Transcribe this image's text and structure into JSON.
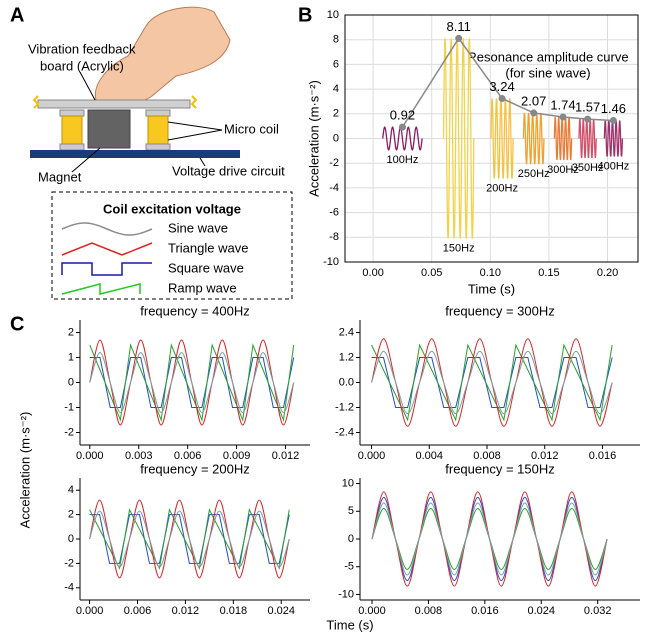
{
  "panel_labels": [
    "A",
    "B",
    "C"
  ],
  "diagram": {
    "labels": {
      "board_line1": "Vibration feedback",
      "board_line2": "board (Acrylic)",
      "coil": "Micro coil",
      "magnet": "Magnet",
      "circuit": "Voltage drive circuit"
    },
    "legend": {
      "title": "Coil excitation voltage",
      "items": [
        {
          "label": "Sine wave",
          "color": "#8c8c8c"
        },
        {
          "label": "Triangle wave",
          "color": "#e02020"
        },
        {
          "label": "Square wave",
          "color": "#1a1aa8"
        },
        {
          "label": "Ramp wave",
          "color": "#22cc22"
        }
      ]
    }
  },
  "panel_c": {
    "ylabel": "Acceleration (m·s⁻²)",
    "xlabel": "Time (s)"
  },
  "chart_data": [
    {
      "type": "line",
      "xlabel": "Time (s)",
      "ylabel": "Acceleration (m·s⁻²)",
      "annotations": [
        "Resonance  amplitude curve",
        "(for sine wave)"
      ],
      "x": [
        0.025,
        0.073,
        0.11,
        0.137,
        0.162,
        0.183,
        0.205
      ],
      "values": [
        0.92,
        8.11,
        3.24,
        2.07,
        1.74,
        1.57,
        1.46
      ],
      "color": "#888888",
      "burst_labels": [
        "100Hz",
        "150Hz",
        "200Hz",
        "250Hz",
        "300Hz",
        "350Hz",
        "400Hz"
      ],
      "burst_colors": [
        "#8b1a6b",
        "#f2d24b",
        "#f5c343",
        "#f0a030",
        "#e87d3a",
        "#d0506a",
        "#a0306a"
      ],
      "xlim": [
        -0.024,
        0.226
      ],
      "xticks": [
        {
          "value": 0,
          "label": "0.00"
        },
        0.05,
        {
          "value": 0.1,
          "label": "0.10"
        },
        0.15,
        {
          "value": 0.2,
          "label": "0.20"
        }
      ],
      "ylim": [
        -10,
        10
      ],
      "yticks": [
        -10,
        -8,
        -6,
        -4,
        -2,
        0,
        2,
        4,
        6,
        8,
        10
      ],
      "grid": true
    },
    {
      "type": "line",
      "title": "frequency = 400Hz",
      "x": [
        0,
        0.000625,
        0.00125,
        0.001875,
        0.0025,
        0.003125,
        0.00375,
        0.004375,
        0.005,
        0.005625,
        0.00625,
        0.006875,
        0.0075,
        0.008125,
        0.00875,
        0.009375,
        0.01,
        0.010625,
        0.01125,
        0.011875,
        0.0125
      ],
      "series": [
        {
          "color": "#1f4fd0",
          "smooth": false,
          "values": [
            1,
            1,
            -1,
            -1,
            1,
            1,
            -1,
            -1,
            1,
            1,
            -1,
            -1,
            1,
            1,
            -1,
            -1,
            1,
            1,
            -1,
            -1,
            1
          ]
        },
        {
          "color": "#2ca02c",
          "smooth": false,
          "values": [
            1.5,
            0.5,
            -0.5,
            -1.5,
            1.5,
            0.5,
            -0.5,
            -1.5,
            1.5,
            0.5,
            -0.5,
            -1.5,
            1.5,
            0.5,
            -0.5,
            -1.5,
            1.5,
            0.5,
            -0.5,
            -1.5,
            1.5
          ]
        },
        {
          "color": "#d62728",
          "smooth": true,
          "values": [
            0,
            1.7,
            0,
            -1.7,
            0,
            1.7,
            0,
            -1.7,
            0,
            1.7,
            0,
            -1.7,
            0,
            1.7,
            0,
            -1.7,
            0,
            1.7,
            0,
            -1.7,
            0
          ]
        },
        {
          "color": "#7a9fa5",
          "smooth": true,
          "values": [
            0,
            1.2,
            0,
            -1.2,
            0,
            1.2,
            0,
            -1.2,
            0,
            1.2,
            0,
            -1.2,
            0,
            1.2,
            0,
            -1.2,
            0,
            1.2,
            0,
            -1.2,
            0
          ]
        }
      ],
      "xlim": [
        -0.0006,
        0.0135
      ],
      "xticks": [
        {
          "value": 0,
          "label": "0.000"
        },
        {
          "value": 0.003,
          "label": "0.003"
        },
        {
          "value": 0.006,
          "label": "0.006"
        },
        {
          "value": 0.009,
          "label": "0.009"
        },
        {
          "value": 0.012,
          "label": "0.012"
        }
      ],
      "ylim": [
        -2.5,
        2.5
      ],
      "yticks": [
        -2,
        -1,
        0,
        1,
        2
      ],
      "grid": false
    },
    {
      "type": "line",
      "title": "frequency = 300Hz",
      "x": [
        0,
        0.00083,
        0.00167,
        0.0025,
        0.00333,
        0.00417,
        0.005,
        0.00583,
        0.00667,
        0.0075,
        0.00833,
        0.00917,
        0.01,
        0.01083,
        0.01167,
        0.0125,
        0.01333,
        0.01417,
        0.015,
        0.01583,
        0.01667
      ],
      "series": [
        {
          "color": "#1f4fd0",
          "smooth": false,
          "values": [
            1.2,
            1.2,
            -1.2,
            -1.2,
            1.2,
            1.2,
            -1.2,
            -1.2,
            1.2,
            1.2,
            -1.2,
            -1.2,
            1.2,
            1.2,
            -1.2,
            -1.2,
            1.2,
            1.2,
            -1.2,
            -1.2,
            1.2
          ]
        },
        {
          "color": "#2ca02c",
          "smooth": false,
          "values": [
            1.8,
            0.6,
            -0.6,
            -1.8,
            1.8,
            0.6,
            -0.6,
            -1.8,
            1.8,
            0.6,
            -0.6,
            -1.8,
            1.8,
            0.6,
            -0.6,
            -1.8,
            1.8,
            0.6,
            -0.6,
            -1.8,
            1.8
          ]
        },
        {
          "color": "#d62728",
          "smooth": true,
          "values": [
            0,
            2.1,
            0,
            -2.1,
            0,
            2.1,
            0,
            -2.1,
            0,
            2.1,
            0,
            -2.1,
            0,
            2.1,
            0,
            -2.1,
            0,
            2.1,
            0,
            -2.1,
            0
          ]
        },
        {
          "color": "#7a9fa5",
          "smooth": true,
          "values": [
            0,
            1.5,
            0,
            -1.5,
            0,
            1.5,
            0,
            -1.5,
            0,
            1.5,
            0,
            -1.5,
            0,
            1.5,
            0,
            -1.5,
            0,
            1.5,
            0,
            -1.5,
            0
          ]
        }
      ],
      "xlim": [
        -0.0008,
        0.0186
      ],
      "xticks": [
        {
          "value": 0,
          "label": "0.000"
        },
        {
          "value": 0.004,
          "label": "0.004"
        },
        {
          "value": 0.008,
          "label": "0.008"
        },
        {
          "value": 0.012,
          "label": "0.012"
        },
        {
          "value": 0.016,
          "label": "0.016"
        }
      ],
      "ylim": [
        -3,
        3
      ],
      "yticks": [
        -2.4,
        -1.2,
        {
          "value": 0,
          "label": "0.0"
        },
        1.2,
        2.4
      ],
      "grid": false
    },
    {
      "type": "line",
      "title": "frequency = 200Hz",
      "x": [
        0,
        0.00125,
        0.0025,
        0.00375,
        0.005,
        0.00625,
        0.0075,
        0.00875,
        0.01,
        0.01125,
        0.0125,
        0.01375,
        0.015,
        0.01625,
        0.0175,
        0.01875,
        0.02,
        0.02125,
        0.0225,
        0.02375,
        0.025
      ],
      "series": [
        {
          "color": "#1f4fd0",
          "smooth": false,
          "values": [
            2,
            2,
            -2,
            -2,
            2,
            2,
            -2,
            -2,
            2,
            2,
            -2,
            -2,
            2,
            2,
            -2,
            -2,
            2,
            2,
            -2,
            -2,
            2
          ]
        },
        {
          "color": "#2ca02c",
          "smooth": false,
          "values": [
            2.4,
            0.8,
            -0.8,
            -2.4,
            2.4,
            0.8,
            -0.8,
            -2.4,
            2.4,
            0.8,
            -0.8,
            -2.4,
            2.4,
            0.8,
            -0.8,
            -2.4,
            2.4,
            0.8,
            -0.8,
            -2.4,
            2.4
          ]
        },
        {
          "color": "#d62728",
          "smooth": true,
          "values": [
            0,
            3.2,
            0,
            -3.2,
            0,
            3.2,
            0,
            -3.2,
            0,
            3.2,
            0,
            -3.2,
            0,
            3.2,
            0,
            -3.2,
            0,
            3.2,
            0,
            -3.2,
            0
          ]
        },
        {
          "color": "#7a9fa5",
          "smooth": true,
          "values": [
            0,
            2.3,
            0,
            -2.3,
            0,
            2.3,
            0,
            -2.3,
            0,
            2.3,
            0,
            -2.3,
            0,
            2.3,
            0,
            -2.3,
            0,
            2.3,
            0,
            -2.3,
            0
          ]
        }
      ],
      "xlim": [
        -0.0012,
        0.0276
      ],
      "xticks": [
        {
          "value": 0,
          "label": "0.000"
        },
        {
          "value": 0.006,
          "label": "0.006"
        },
        {
          "value": 0.012,
          "label": "0.012"
        },
        {
          "value": 0.018,
          "label": "0.018"
        },
        {
          "value": 0.024,
          "label": "0.024"
        }
      ],
      "ylim": [
        -5,
        5
      ],
      "yticks": [
        -4,
        -2,
        0,
        2,
        4
      ],
      "grid": false
    },
    {
      "type": "line",
      "title": "frequency = 150Hz",
      "x": [
        0,
        0.00167,
        0.00333,
        0.005,
        0.00667,
        0.00833,
        0.01,
        0.01167,
        0.01333,
        0.015,
        0.01667,
        0.01833,
        0.02,
        0.02167,
        0.02333,
        0.025,
        0.02667,
        0.02833,
        0.03,
        0.03167,
        0.03333
      ],
      "series": [
        {
          "color": "#1f4fd0",
          "smooth": true,
          "values": [
            0,
            7.5,
            0,
            -7.5,
            0,
            7.5,
            0,
            -7.5,
            0,
            7.5,
            0,
            -7.5,
            0,
            7.5,
            0,
            -7.5,
            0,
            7.5,
            0,
            -7.5,
            0
          ]
        },
        {
          "color": "#2ca02c",
          "smooth": true,
          "values": [
            0,
            5.5,
            0,
            -5.5,
            0,
            5.5,
            0,
            -5.5,
            0,
            5.5,
            0,
            -5.5,
            0,
            5.5,
            0,
            -5.5,
            0,
            5.5,
            0,
            -5.5,
            0
          ]
        },
        {
          "color": "#d62728",
          "smooth": true,
          "values": [
            0,
            8.5,
            0,
            -8.5,
            0,
            8.5,
            0,
            -8.5,
            0,
            8.5,
            0,
            -8.5,
            0,
            8.5,
            0,
            -8.5,
            0,
            8.5,
            0,
            -8.5,
            0
          ]
        },
        {
          "color": "#7a9fa5",
          "smooth": true,
          "values": [
            0,
            6.5,
            0,
            -6.5,
            0,
            6.5,
            0,
            -6.5,
            0,
            6.5,
            0,
            -6.5,
            0,
            6.5,
            0,
            -6.5,
            0,
            6.5,
            0,
            -6.5,
            0
          ]
        }
      ],
      "xlim": [
        -0.0017,
        0.038
      ],
      "xticks": [
        {
          "value": 0,
          "label": "0.000"
        },
        {
          "value": 0.008,
          "label": "0.008"
        },
        {
          "value": 0.016,
          "label": "0.016"
        },
        {
          "value": 0.024,
          "label": "0.024"
        },
        {
          "value": 0.032,
          "label": "0.032"
        }
      ],
      "ylim": [
        -11,
        11
      ],
      "yticks": [
        -10,
        -5,
        0,
        5,
        10
      ],
      "grid": false
    }
  ]
}
